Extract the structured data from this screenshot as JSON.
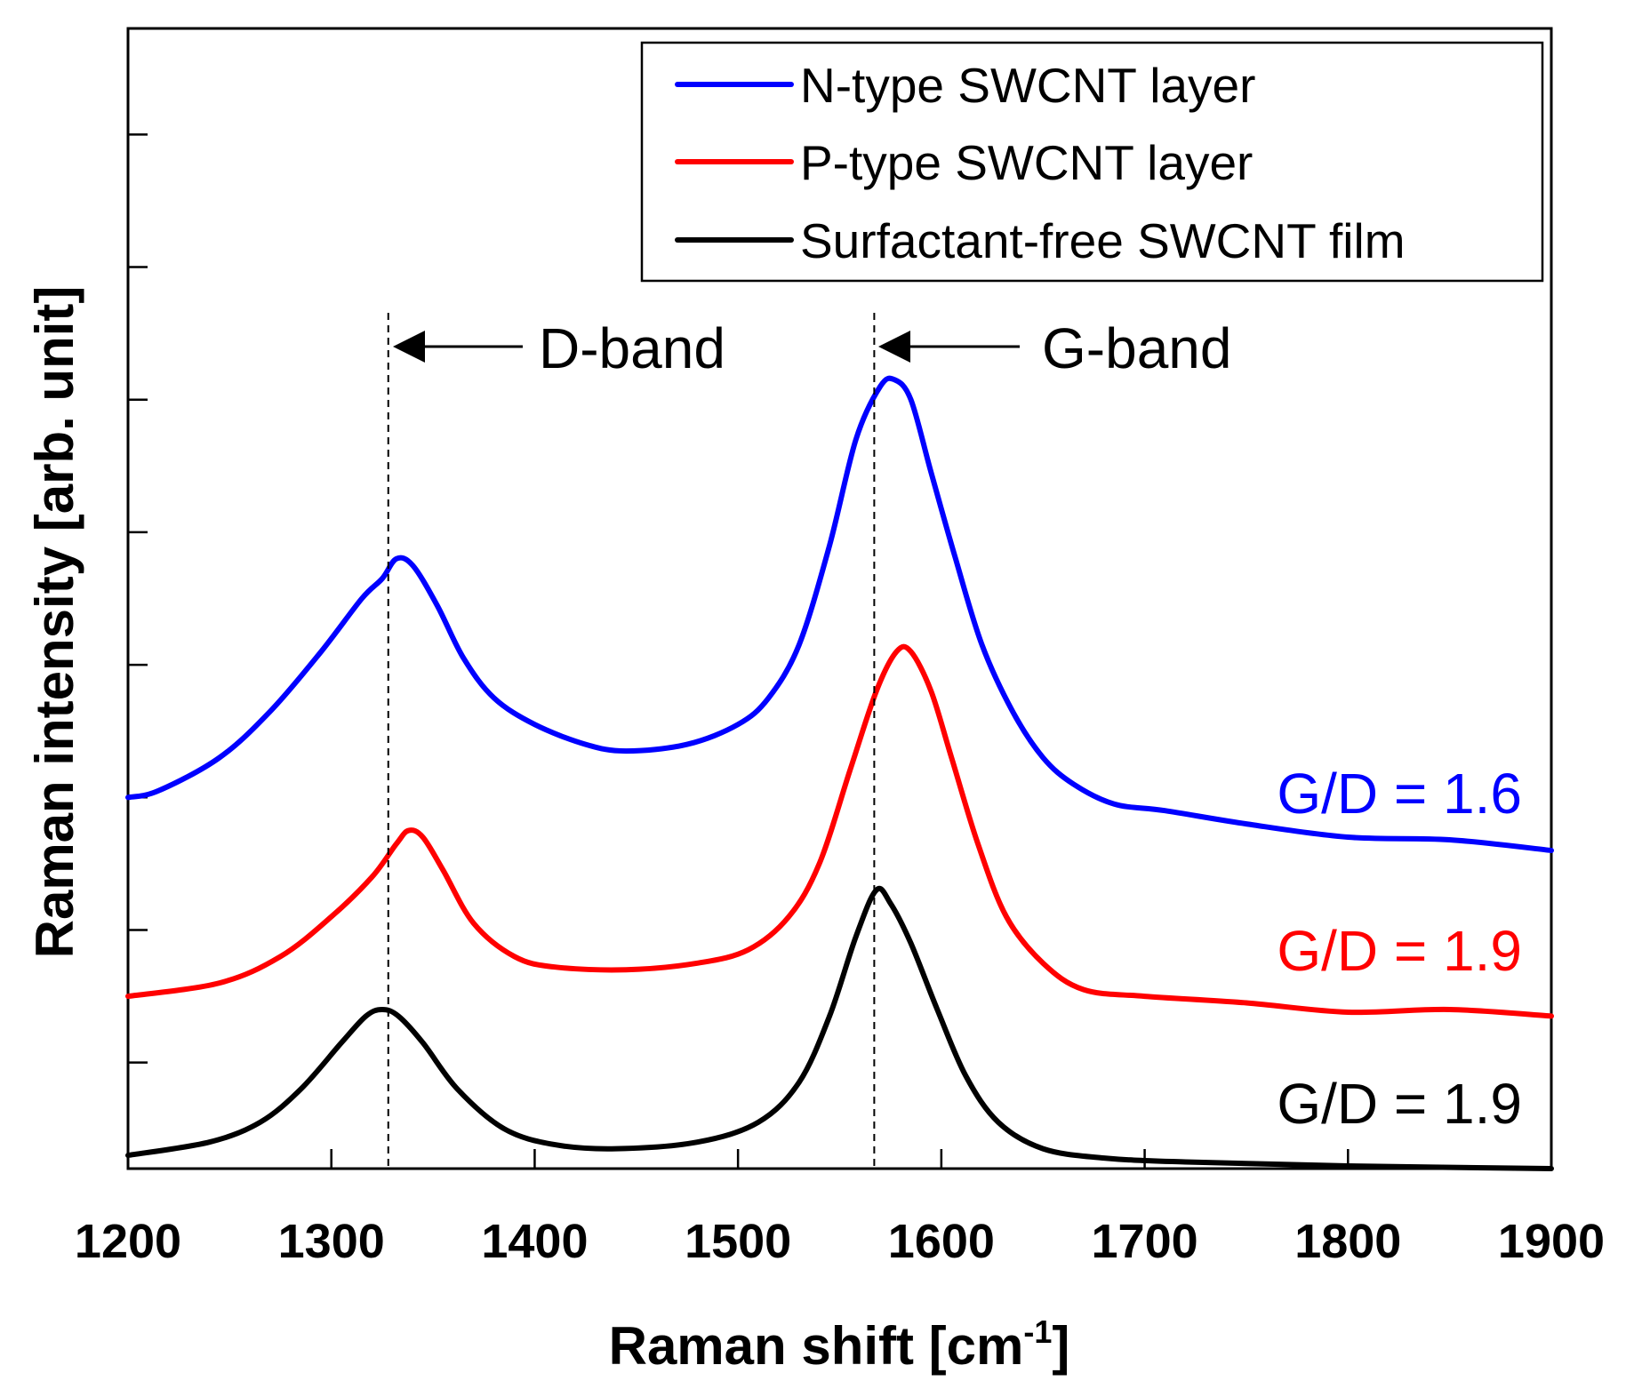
{
  "chart_data": {
    "type": "line",
    "xlabel": "Raman shift [cm",
    "xlabel_superscript": "-1",
    "xlabel_suffix": "]",
    "ylabel": "Raman intensity [arb. unit]",
    "xlim": [
      1200,
      1900
    ],
    "ylim": [
      0,
      8.6
    ],
    "xticks": [
      1200,
      1300,
      1400,
      1500,
      1600,
      1700,
      1800,
      1900
    ],
    "yticks_unlabeled": [
      0.8,
      1.8,
      2.8,
      3.8,
      4.8,
      5.8,
      6.8,
      7.8
    ],
    "legend_position": "top-right",
    "series": [
      {
        "name": "N-type SWCNT layer",
        "color": "#0000ff",
        "ratio_label": "G/D = 1.6",
        "points": [
          [
            1200,
            2.8
          ],
          [
            1215,
            2.85
          ],
          [
            1245,
            3.1
          ],
          [
            1270,
            3.45
          ],
          [
            1295,
            3.9
          ],
          [
            1315,
            4.3
          ],
          [
            1325,
            4.45
          ],
          [
            1332,
            4.6
          ],
          [
            1340,
            4.55
          ],
          [
            1352,
            4.25
          ],
          [
            1365,
            3.85
          ],
          [
            1380,
            3.55
          ],
          [
            1400,
            3.35
          ],
          [
            1425,
            3.2
          ],
          [
            1445,
            3.15
          ],
          [
            1475,
            3.2
          ],
          [
            1500,
            3.35
          ],
          [
            1515,
            3.55
          ],
          [
            1530,
            3.95
          ],
          [
            1545,
            4.7
          ],
          [
            1558,
            5.5
          ],
          [
            1570,
            5.9
          ],
          [
            1577,
            5.95
          ],
          [
            1585,
            5.8
          ],
          [
            1595,
            5.25
          ],
          [
            1607,
            4.6
          ],
          [
            1620,
            3.95
          ],
          [
            1635,
            3.45
          ],
          [
            1650,
            3.1
          ],
          [
            1665,
            2.9
          ],
          [
            1685,
            2.75
          ],
          [
            1710,
            2.7
          ],
          [
            1750,
            2.6
          ],
          [
            1800,
            2.5
          ],
          [
            1850,
            2.48
          ],
          [
            1900,
            2.4
          ]
        ]
      },
      {
        "name": "P-type SWCNT layer",
        "color": "#ff0000",
        "ratio_label": "G/D = 1.9",
        "points": [
          [
            1200,
            1.3
          ],
          [
            1245,
            1.4
          ],
          [
            1275,
            1.6
          ],
          [
            1300,
            1.9
          ],
          [
            1320,
            2.2
          ],
          [
            1332,
            2.45
          ],
          [
            1338,
            2.55
          ],
          [
            1345,
            2.5
          ],
          [
            1355,
            2.25
          ],
          [
            1370,
            1.85
          ],
          [
            1390,
            1.6
          ],
          [
            1410,
            1.52
          ],
          [
            1445,
            1.5
          ],
          [
            1480,
            1.55
          ],
          [
            1505,
            1.65
          ],
          [
            1525,
            1.9
          ],
          [
            1540,
            2.3
          ],
          [
            1555,
            3.0
          ],
          [
            1568,
            3.6
          ],
          [
            1578,
            3.9
          ],
          [
            1585,
            3.9
          ],
          [
            1595,
            3.6
          ],
          [
            1605,
            3.1
          ],
          [
            1618,
            2.45
          ],
          [
            1632,
            1.9
          ],
          [
            1650,
            1.55
          ],
          [
            1670,
            1.35
          ],
          [
            1700,
            1.3
          ],
          [
            1750,
            1.25
          ],
          [
            1800,
            1.18
          ],
          [
            1850,
            1.2
          ],
          [
            1900,
            1.15
          ]
        ]
      },
      {
        "name": "Surfactant-free SWCNT film",
        "color": "#000000",
        "ratio_label": "G/D = 1.9",
        "points": [
          [
            1200,
            0.1
          ],
          [
            1240,
            0.2
          ],
          [
            1265,
            0.35
          ],
          [
            1285,
            0.6
          ],
          [
            1305,
            0.95
          ],
          [
            1317,
            1.15
          ],
          [
            1325,
            1.2
          ],
          [
            1333,
            1.15
          ],
          [
            1345,
            0.95
          ],
          [
            1362,
            0.6
          ],
          [
            1385,
            0.3
          ],
          [
            1410,
            0.18
          ],
          [
            1440,
            0.15
          ],
          [
            1480,
            0.2
          ],
          [
            1510,
            0.35
          ],
          [
            1530,
            0.65
          ],
          [
            1545,
            1.15
          ],
          [
            1558,
            1.75
          ],
          [
            1568,
            2.1
          ],
          [
            1575,
            2.0
          ],
          [
            1585,
            1.7
          ],
          [
            1598,
            1.2
          ],
          [
            1612,
            0.7
          ],
          [
            1628,
            0.35
          ],
          [
            1650,
            0.15
          ],
          [
            1680,
            0.08
          ],
          [
            1720,
            0.05
          ],
          [
            1800,
            0.02
          ],
          [
            1900,
            0.0
          ]
        ]
      }
    ],
    "annotations": [
      {
        "label": "D-band",
        "x": 1328
      },
      {
        "label": "G-band",
        "x": 1567
      }
    ]
  }
}
